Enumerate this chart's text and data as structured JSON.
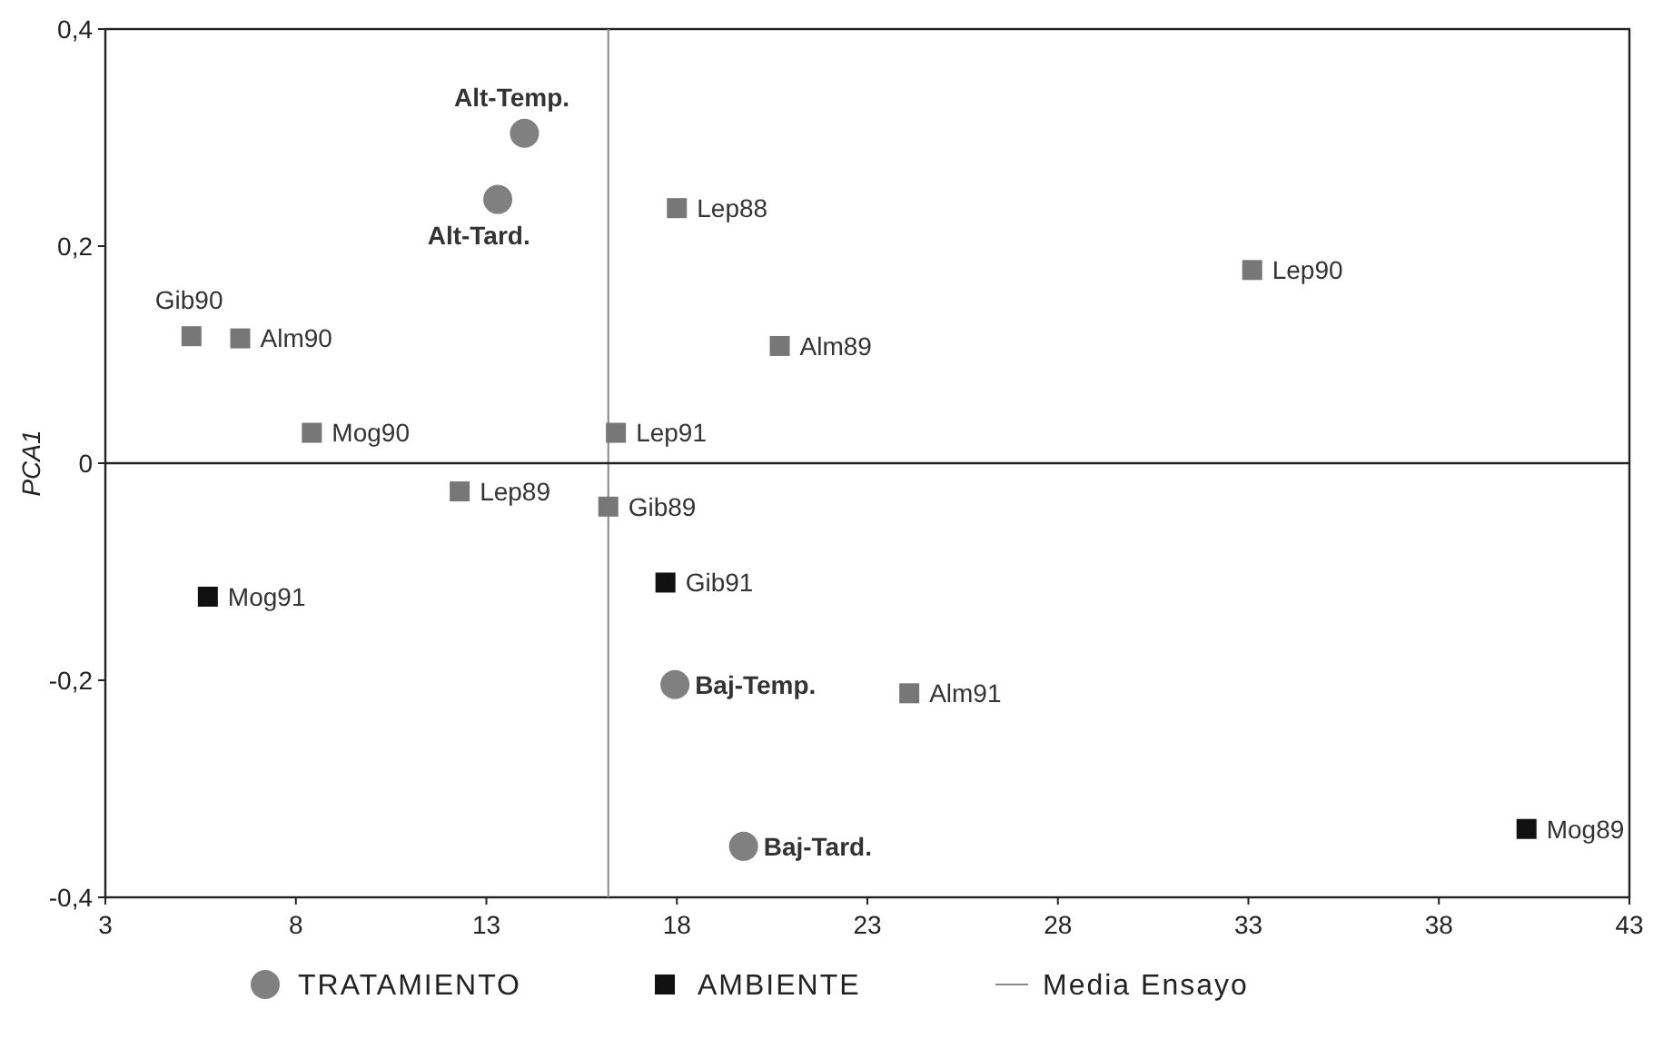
{
  "chart_data": {
    "type": "scatter",
    "ylabel": "PCA1",
    "xlim": [
      3,
      43
    ],
    "xticks": [
      3,
      8,
      13,
      18,
      23,
      28,
      33,
      38,
      43
    ],
    "ylim": [
      -0.4,
      0.4
    ],
    "yticks": [
      {
        "value": -0.4,
        "label": "-0,4"
      },
      {
        "value": -0.2,
        "label": "-0,2"
      },
      {
        "value": 0,
        "label": "0"
      },
      {
        "value": 0.2,
        "label": "0,2"
      },
      {
        "value": 0.4,
        "label": "0,4"
      }
    ],
    "series": [
      {
        "name": "TRATAMIENTO",
        "color": "#808080",
        "marker": "circle",
        "x": [
          14.0,
          13.3,
          17.95,
          19.75
        ],
        "values": [
          0.304,
          0.243,
          -0.204,
          -0.353
        ]
      },
      {
        "name": "AMBIENTE",
        "color": "#111111",
        "marker": "square",
        "x": [
          18.0,
          33.1,
          5.26,
          6.54,
          20.7,
          8.42,
          16.4,
          12.3,
          16.2,
          5.69,
          17.7,
          24.1,
          40.3
        ],
        "values": [
          0.235,
          0.178,
          0.117,
          0.115,
          0.108,
          0.028,
          0.028,
          -0.026,
          -0.04,
          -0.123,
          -0.11,
          -0.212,
          -0.337
        ],
        "colors": [
          "#777777",
          "#777777",
          "#777777",
          "#777777",
          "#777777",
          "#777777",
          "#777777",
          "#777777",
          "#777777",
          "#111111",
          "#111111",
          "#777777",
          "#111111"
        ]
      }
    ],
    "annotations": [
      {
        "text": "Alt-Temp.",
        "x": 14.0,
        "y": 0.304
      },
      {
        "text": "Alt-Tard.",
        "x": 13.3,
        "y": 0.243
      },
      {
        "text": "Baj-Temp.",
        "x": 17.95,
        "y": -0.204
      },
      {
        "text": "Baj-Tard.",
        "x": 19.75,
        "y": -0.353
      },
      {
        "text": "Lep88",
        "x": 18.0,
        "y": 0.235
      },
      {
        "text": "Lep90",
        "x": 33.1,
        "y": 0.178
      },
      {
        "text": "Gib90",
        "x": 5.26,
        "y": 0.117
      },
      {
        "text": "Alm90",
        "x": 6.54,
        "y": 0.115
      },
      {
        "text": "Alm89",
        "x": 20.7,
        "y": 0.108
      },
      {
        "text": "Mog90",
        "x": 8.42,
        "y": 0.028
      },
      {
        "text": "Lep91",
        "x": 16.4,
        "y": 0.028
      },
      {
        "text": "Lep89",
        "x": 12.3,
        "y": -0.026
      },
      {
        "text": "Gib89",
        "x": 16.2,
        "y": -0.04
      },
      {
        "text": "Mog91",
        "x": 5.69,
        "y": -0.123
      },
      {
        "text": "Gib91",
        "x": 17.7,
        "y": -0.11
      },
      {
        "text": "Alm91",
        "x": 24.1,
        "y": -0.212
      },
      {
        "text": "Mog89",
        "x": 40.3,
        "y": -0.337
      }
    ],
    "ref_lines": [
      {
        "axis": "x",
        "value": 16.2,
        "label": "Media Ensayo",
        "color": "#888888"
      },
      {
        "axis": "y",
        "value": 0,
        "label": null,
        "color": "#222222"
      }
    ],
    "grid": false,
    "legend": "bottom"
  }
}
